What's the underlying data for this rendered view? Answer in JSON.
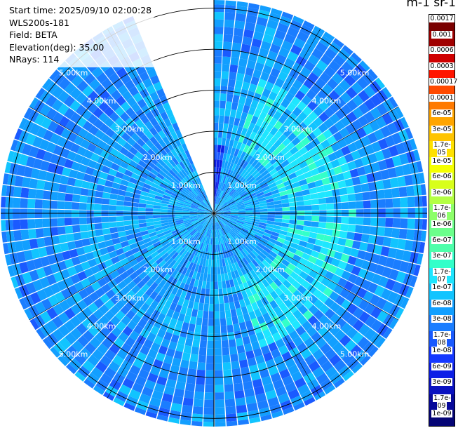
{
  "info": {
    "start_time": "Start time: 2025/09/10 02:00:28",
    "instrument": "WLS200s-181",
    "field": "Field: BETA",
    "elevation": "Elevation(deg): 35.00",
    "nrays": "NRays: 114"
  },
  "colorbar": {
    "unit_label": "m-1 sr-1",
    "ticks": [
      "0.0017",
      "0.001",
      "0.0006",
      "0.0003",
      "0.00017",
      "0.0001",
      "6e-05",
      "3e-05",
      "1.7e-05",
      "1e-05",
      "6e-06",
      "3e-06",
      "1.7e-06",
      "1e-06",
      "6e-07",
      "3e-07",
      "1.7e-07",
      "1e-07",
      "6e-08",
      "3e-08",
      "1.7e-08",
      "1e-08",
      "6e-09",
      "3e-09",
      "1.7e-09",
      "1e-09"
    ],
    "colors": [
      "#7a0000",
      "#a00000",
      "#cf0000",
      "#ff1500",
      "#ff4a00",
      "#ff7a00",
      "#ffa500",
      "#ffc400",
      "#ffe100",
      "#f5ff00",
      "#d8ff1a",
      "#b4ff44",
      "#8dff6a",
      "#6bff8b",
      "#4dffaa",
      "#33ffc9",
      "#1ee6ff",
      "#11c4ff",
      "#129fff",
      "#1a7dff",
      "#1a5aff",
      "#1538ff",
      "#0d1fe6",
      "#0a12c0",
      "#07099a",
      "#050575"
    ]
  },
  "chart_data": {
    "type": "heatmap",
    "subtype": "polar-ppi",
    "title": "",
    "range_labels": [
      "1.00km",
      "2.00km",
      "3.00km",
      "4.00km",
      "5.00km"
    ],
    "rings_km": [
      1,
      2,
      3,
      4,
      5
    ],
    "max_range_km": 5.2,
    "nrays": 114,
    "gap_azimuth_deg": [
      339,
      359
    ],
    "field": "BETA",
    "scale": "log",
    "value_range": [
      1e-09,
      0.0017
    ],
    "typical_values": {
      "near_range": "1e-07 to 1.7e-07",
      "mid_range_east_west": "3e-07 to 1e-06",
      "far_range": "6e-08 to 3e-08"
    }
  }
}
